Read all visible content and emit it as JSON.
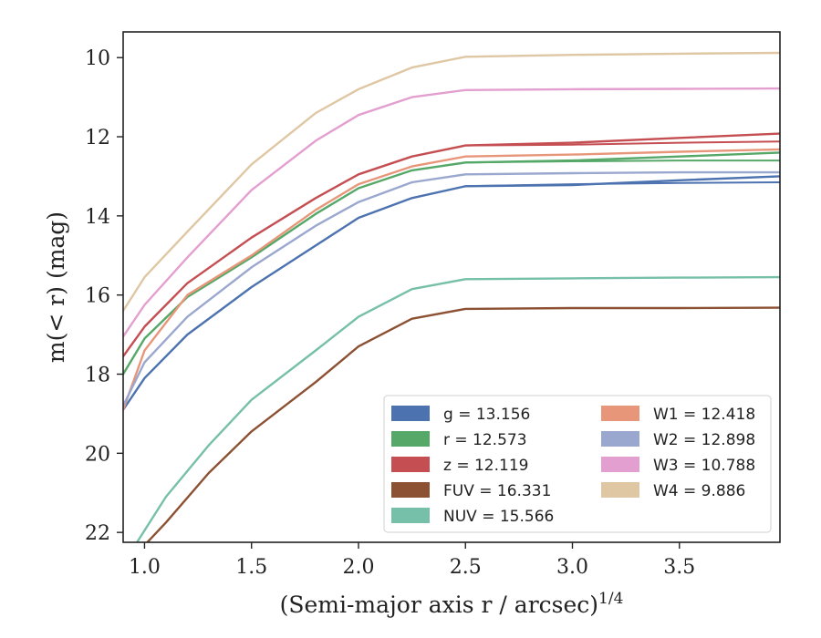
{
  "chart_data": {
    "type": "line",
    "title": "",
    "xlabel": "(Semi-major axis r / arcsec)",
    "xlabel_superscript": "1/4",
    "ylabel": "m(< r) (mag)",
    "xlim": [
      0.9,
      3.97
    ],
    "ylim": [
      22.25,
      9.35
    ],
    "y_inverted": true,
    "x_ticks": [
      1.0,
      1.5,
      2.0,
      2.5,
      3.0,
      3.5
    ],
    "x_tick_labels": [
      "1.0",
      "1.5",
      "2.0",
      "2.5",
      "3.0",
      "3.5"
    ],
    "y_ticks": [
      10,
      12,
      14,
      16,
      18,
      20,
      22
    ],
    "y_tick_labels": [
      "10",
      "12",
      "14",
      "16",
      "18",
      "20",
      "22"
    ],
    "grid": false,
    "legend_position": "lower-right",
    "series": [
      {
        "name": "g = 13.156",
        "color": "#4c72b0",
        "x": [
          0.9,
          1.0,
          1.2,
          1.5,
          1.8,
          2.0,
          2.25,
          2.5,
          3.0,
          3.5,
          3.97
        ],
        "y": [
          18.9,
          18.1,
          17.0,
          15.8,
          14.75,
          14.05,
          13.55,
          13.25,
          13.22,
          13.1,
          13.0
        ],
        "y_lower_branch": [
          13.25,
          13.2,
          13.17,
          13.15
        ]
      },
      {
        "name": "r = 12.573",
        "color": "#55a868",
        "x": [
          0.9,
          1.0,
          1.2,
          1.5,
          1.8,
          2.0,
          2.25,
          2.5,
          3.0,
          3.5,
          3.97
        ],
        "y": [
          18.0,
          17.1,
          16.05,
          15.05,
          13.95,
          13.3,
          12.85,
          12.65,
          12.6,
          12.5,
          12.4
        ],
        "y_lower_branch": [
          12.65,
          12.62,
          12.6,
          12.6
        ]
      },
      {
        "name": "z = 12.119",
        "color": "#c44e52",
        "x": [
          0.9,
          1.0,
          1.2,
          1.5,
          1.8,
          2.0,
          2.25,
          2.5,
          3.0,
          3.5,
          3.97
        ],
        "y": [
          17.55,
          16.8,
          15.7,
          14.55,
          13.55,
          12.95,
          12.5,
          12.22,
          12.15,
          12.03,
          11.92
        ],
        "y_lower_branch": [
          12.22,
          12.2,
          12.15,
          12.12
        ]
      },
      {
        "name": "FUV = 16.331",
        "color": "#8c5132",
        "x": [
          0.9,
          1.1,
          1.3,
          1.5,
          1.8,
          2.0,
          2.25,
          2.5,
          3.0,
          3.5,
          3.97
        ],
        "y": [
          22.9,
          21.75,
          20.5,
          19.45,
          18.2,
          17.3,
          16.6,
          16.35,
          16.33,
          16.33,
          16.32
        ]
      },
      {
        "name": "NUV = 15.566",
        "color": "#76bfa8",
        "x": [
          0.9,
          1.1,
          1.3,
          1.5,
          1.8,
          2.0,
          2.25,
          2.5,
          3.0,
          3.5,
          3.97
        ],
        "y": [
          22.8,
          21.1,
          19.8,
          18.65,
          17.4,
          16.55,
          15.85,
          15.6,
          15.58,
          15.56,
          15.55
        ]
      },
      {
        "name": "W1 = 12.418",
        "color": "#e8967a",
        "x": [
          0.9,
          1.0,
          1.2,
          1.5,
          1.8,
          2.0,
          2.25,
          2.5,
          3.0,
          3.5,
          3.97
        ],
        "y": [
          18.9,
          17.4,
          16.0,
          15.0,
          13.85,
          13.2,
          12.75,
          12.5,
          12.45,
          12.38,
          12.32
        ]
      },
      {
        "name": "W2 = 12.898",
        "color": "#9aa7cf",
        "x": [
          0.9,
          1.0,
          1.2,
          1.5,
          1.8,
          2.0,
          2.25,
          2.5,
          3.0,
          3.5,
          3.97
        ],
        "y": [
          18.8,
          17.7,
          16.55,
          15.3,
          14.25,
          13.65,
          13.15,
          12.95,
          12.92,
          12.9,
          12.9
        ]
      },
      {
        "name": "W3 = 10.788",
        "color": "#e39fcf",
        "x": [
          0.9,
          1.0,
          1.2,
          1.5,
          1.8,
          2.0,
          2.25,
          2.5,
          3.0,
          3.5,
          3.97
        ],
        "y": [
          17.05,
          16.25,
          15.05,
          13.35,
          12.1,
          11.45,
          11.0,
          10.82,
          10.8,
          10.79,
          10.78
        ]
      },
      {
        "name": "W4 = 9.886",
        "color": "#dfc7a4",
        "x": [
          0.9,
          1.0,
          1.2,
          1.5,
          1.8,
          2.0,
          2.25,
          2.5,
          3.0,
          3.5,
          3.97
        ],
        "y": [
          16.4,
          15.55,
          14.4,
          12.7,
          11.4,
          10.8,
          10.25,
          9.98,
          9.93,
          9.9,
          9.88
        ]
      }
    ]
  }
}
